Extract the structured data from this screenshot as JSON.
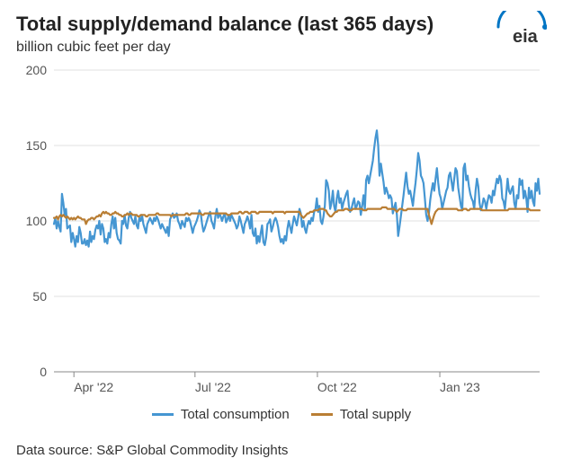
{
  "title": "Total supply/demand balance (last 365 days)",
  "subtitle": "billion cubic feet per day",
  "source": "Data source: S&P Global Commodity Insights",
  "logo": {
    "text": "eia",
    "arc_color": "#0075c4",
    "text_color": "#333333"
  },
  "chart": {
    "type": "line",
    "background_color": "#ffffff",
    "grid_color": "#e2e2e2",
    "axis_color": "#888888",
    "tick_font_size": 14,
    "tick_color": "#555555",
    "ylim": [
      0,
      200
    ],
    "yticks": [
      0,
      50,
      100,
      150,
      200
    ],
    "xlim": [
      0,
      365
    ],
    "xticks": [
      {
        "pos": 15,
        "label": "Apr '22"
      },
      {
        "pos": 106,
        "label": "Jul '22"
      },
      {
        "pos": 198,
        "label": "Oct '22"
      },
      {
        "pos": 290,
        "label": "Jan '23"
      }
    ],
    "line_width": 2.2,
    "series": [
      {
        "name": "Total consumption",
        "color": "#4596d2",
        "values": [
          98,
          102,
          95,
          100,
          96,
          93,
          118,
          112,
          104,
          108,
          95,
          96,
          97,
          86,
          92,
          88,
          83,
          90,
          86,
          96,
          92,
          85,
          85,
          88,
          84,
          87,
          83,
          93,
          86,
          90,
          88,
          94,
          97,
          95,
          100,
          91,
          98,
          95,
          86,
          88,
          85,
          92,
          89,
          98,
          103,
          95,
          102,
          92,
          88,
          87,
          85,
          100,
          98,
          104,
          97,
          95,
          102,
          106,
          102,
          100,
          98,
          103,
          97,
          95,
          102,
          100,
          104,
          98,
          95,
          92,
          98,
          100,
          102,
          100,
          98,
          102,
          100,
          103,
          101,
          98,
          95,
          98,
          96,
          94,
          92,
          96,
          90,
          101,
          103,
          105,
          102,
          103,
          105,
          100,
          98,
          95,
          100,
          98,
          96,
          102,
          100,
          102,
          100,
          96,
          92,
          96,
          98,
          100,
          103,
          107,
          105,
          98,
          93,
          95,
          98,
          101,
          104,
          106,
          100,
          98,
          95,
          103,
          108,
          102,
          105,
          103,
          100,
          103,
          105,
          99,
          101,
          104,
          100,
          104,
          102,
          100,
          98,
          95,
          97,
          103,
          100,
          96,
          92,
          98,
          100,
          103,
          100,
          95,
          104,
          92,
          90,
          95,
          85,
          90,
          86,
          92,
          97,
          86,
          84,
          89,
          98,
          99,
          101,
          93,
          96,
          100,
          102,
          100,
          96,
          90,
          86,
          88,
          85,
          90,
          87,
          95,
          100,
          96,
          92,
          98,
          103,
          100,
          97,
          102,
          108,
          105,
          96,
          100,
          95,
          92,
          97,
          100,
          98,
          102,
          100,
          106,
          108,
          115,
          106,
          110,
          100,
          98,
          103,
          110,
          127,
          125,
          120,
          108,
          112,
          120,
          110,
          106,
          115,
          120,
          112,
          115,
          108,
          112,
          115,
          118,
          120,
          110,
          106,
          108,
          112,
          115,
          108,
          110,
          113,
          112,
          104,
          110,
          117,
          108,
          127,
          130,
          125,
          130,
          135,
          140,
          148,
          155,
          160,
          150,
          130,
          138,
          132,
          126,
          118,
          122,
          119,
          115,
          117,
          115,
          105,
          109,
          112,
          104,
          90,
          96,
          103,
          110,
          117,
          125,
          132,
          123,
          118,
          120,
          115,
          110,
          118,
          125,
          134,
          145,
          140,
          130,
          128,
          125,
          115,
          104,
          100,
          105,
          114,
          120,
          125,
          120,
          128,
          135,
          125,
          118,
          115,
          108,
          112,
          116,
          120,
          122,
          130,
          132,
          126,
          120,
          128,
          135,
          133,
          122,
          116,
          110,
          107,
          135,
          138,
          127,
          130,
          123,
          118,
          115,
          113,
          108,
          120,
          128,
          123,
          112,
          107,
          110,
          115,
          113,
          108,
          113,
          117,
          116,
          112,
          120,
          117,
          123,
          128,
          125,
          130,
          127,
          115,
          113,
          108,
          118,
          128,
          120,
          118,
          121,
          123,
          112,
          108,
          117,
          115,
          128,
          124,
          127,
          115,
          120,
          115,
          106,
          122,
          115,
          120,
          113,
          110,
          125,
          120,
          128,
          118
        ]
      },
      {
        "name": "Total supply",
        "color": "#b97e34",
        "values": [
          102,
          102,
          103,
          101,
          103,
          104,
          103,
          104,
          103,
          102,
          103,
          102,
          101,
          102,
          101,
          102,
          101,
          102,
          103,
          102,
          102,
          101,
          101,
          101,
          98,
          100,
          101,
          101,
          102,
          102,
          101,
          102,
          103,
          103,
          104,
          103,
          105,
          106,
          105,
          106,
          105,
          105,
          104,
          104,
          105,
          105,
          106,
          105,
          105,
          104,
          104,
          103,
          103,
          104,
          104,
          105,
          104,
          105,
          105,
          104,
          104,
          104,
          104,
          103,
          103,
          104,
          104,
          104,
          104,
          103,
          103,
          104,
          104,
          104,
          104,
          104,
          104,
          105,
          105,
          104,
          104,
          104,
          104,
          104,
          104,
          104,
          104,
          104,
          103,
          104,
          104,
          104,
          104,
          104,
          104,
          104,
          104,
          104,
          104,
          105,
          105,
          104,
          104,
          105,
          105,
          105,
          105,
          105,
          105,
          105,
          105,
          104,
          104,
          105,
          105,
          105,
          105,
          105,
          105,
          105,
          105,
          105,
          105,
          105,
          105,
          105,
          105,
          105,
          105,
          105,
          104,
          104,
          104,
          105,
          105,
          105,
          105,
          105,
          105,
          106,
          106,
          105,
          105,
          106,
          106,
          106,
          105,
          105,
          106,
          106,
          106,
          106,
          105,
          105,
          106,
          106,
          106,
          106,
          106,
          106,
          106,
          106,
          106,
          106,
          105,
          106,
          106,
          106,
          106,
          106,
          106,
          106,
          106,
          105,
          106,
          106,
          106,
          106,
          106,
          106,
          106,
          106,
          106,
          106,
          106,
          104,
          103,
          102,
          103,
          104,
          105,
          105,
          106,
          106,
          106,
          107,
          107,
          107,
          107,
          108,
          108,
          108,
          108,
          107,
          107,
          105,
          104,
          103,
          103,
          104,
          105,
          106,
          106,
          107,
          107,
          107,
          107,
          107,
          108,
          108,
          108,
          107,
          107,
          107,
          108,
          108,
          108,
          108,
          108,
          108,
          108,
          108,
          107,
          107,
          107,
          108,
          108,
          108,
          108,
          108,
          108,
          108,
          108,
          108,
          108,
          108,
          109,
          109,
          109,
          109,
          108,
          108,
          108,
          108,
          108,
          108,
          107,
          106,
          107,
          108,
          108,
          108,
          107,
          107,
          107,
          108,
          108,
          108,
          108,
          108,
          108,
          108,
          108,
          108,
          108,
          108,
          108,
          108,
          108,
          108,
          108,
          104,
          101,
          98,
          101,
          104,
          106,
          107,
          108,
          108,
          108,
          108,
          108,
          108,
          108,
          108,
          108,
          108,
          108,
          108,
          108,
          108,
          108,
          107,
          107,
          107,
          107,
          108,
          108,
          108,
          107,
          107,
          108,
          108,
          108,
          108,
          108,
          108,
          108,
          108,
          108,
          107,
          107,
          107,
          107,
          107,
          107,
          107,
          107,
          107,
          107,
          107,
          107,
          107,
          107,
          107,
          107,
          107,
          107,
          107,
          107,
          108,
          108,
          108,
          108,
          108,
          108,
          108,
          108,
          108,
          108,
          108,
          108,
          108,
          108,
          108,
          108,
          107,
          107,
          107,
          107,
          107,
          107,
          107,
          107
        ]
      }
    ]
  },
  "legend": {
    "items": [
      {
        "label": "Total consumption",
        "color": "#4596d2"
      },
      {
        "label": "Total supply",
        "color": "#b97e34"
      }
    ]
  }
}
